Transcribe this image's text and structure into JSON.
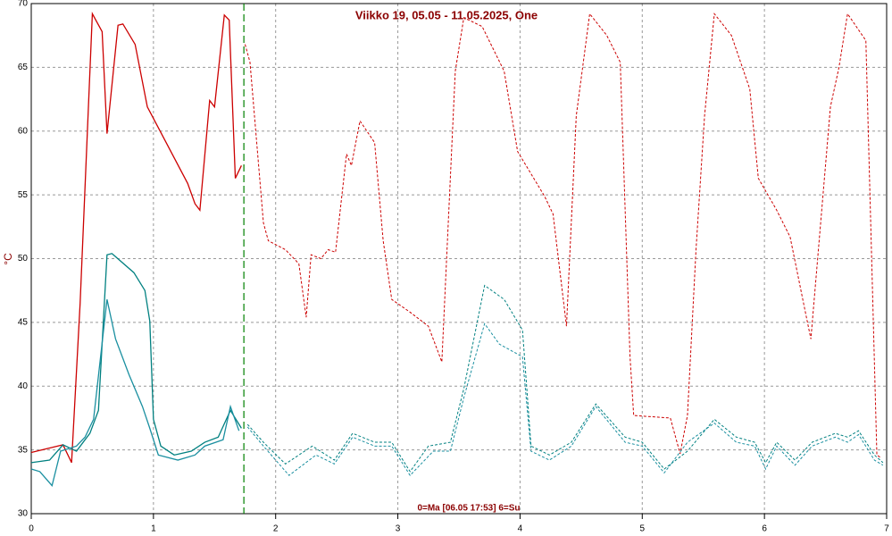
{
  "chart_data": {
    "type": "line",
    "title": "Viikko 19, 05.05 - 11.05.2025, One",
    "y_label": "°C",
    "annotation": "0=Ma [06.05 17:53] 6=Su",
    "xlim": [
      0,
      7
    ],
    "xticks": [
      0,
      1,
      2,
      3,
      4,
      5,
      6,
      7
    ],
    "ylim": [
      30,
      70
    ],
    "yticks": [
      30,
      35,
      40,
      45,
      50,
      55,
      60,
      65,
      70
    ],
    "grid": true,
    "marker_x": 1.74,
    "marker_color": "#008000",
    "series": [
      {
        "color": "#cc0000",
        "x": [
          0,
          0.26,
          0.33,
          0.4,
          0.5,
          0.58,
          0.62,
          0.71,
          0.75,
          0.85,
          0.95,
          1.28,
          1.34,
          1.38,
          1.46,
          1.5,
          1.58,
          1.62,
          1.67,
          1.72,
          1.75,
          1.79,
          1.9,
          1.94,
          2.08,
          2.19,
          2.25,
          2.29,
          2.37,
          2.43,
          2.49,
          2.58,
          2.62,
          2.69,
          2.81,
          2.88,
          2.95,
          3.1,
          3.25,
          3.36,
          3.47,
          3.54,
          3.69,
          3.87,
          3.98,
          4.2,
          4.27,
          4.38,
          4.46,
          4.57,
          4.71,
          4.82,
          4.9,
          4.93,
          5.23,
          5.31,
          5.37,
          5.44,
          5.51,
          5.59,
          5.73,
          5.88,
          5.95,
          6.1,
          6.21,
          6.32,
          6.38,
          6.54,
          6.61,
          6.68,
          6.83,
          6.92,
          6.95
        ],
        "values": [
          34.8,
          35.4,
          34.0,
          46.5,
          69.2,
          67.8,
          59.8,
          68.3,
          68.4,
          66.8,
          61.9,
          55.9,
          54.3,
          53.8,
          62.4,
          61.9,
          69.1,
          68.7,
          56.3,
          57.3,
          66.8,
          65.4,
          52.8,
          51.4,
          50.7,
          49.6,
          45.4,
          50.3,
          50.0,
          50.7,
          50.5,
          58.2,
          57.3,
          60.8,
          59.1,
          51.4,
          46.8,
          45.8,
          44.7,
          41.9,
          64.7,
          68.9,
          68.2,
          64.7,
          58.4,
          54.9,
          53.5,
          44.7,
          61.2,
          69.2,
          67.5,
          65.4,
          42.3,
          37.7,
          37.5,
          34.7,
          37.7,
          50.7,
          61.2,
          69.2,
          67.5,
          63.3,
          56.3,
          53.8,
          51.7,
          46.5,
          43.7,
          61.9,
          65.0,
          69.2,
          67.1,
          34.6,
          34.4
        ]
      },
      {
        "color": "#008080",
        "x": [
          0,
          0.15,
          0.26,
          0.37,
          0.48,
          0.55,
          0.62,
          0.66,
          0.84,
          0.93,
          0.97,
          1.0,
          1.06,
          1.17,
          1.31,
          1.42,
          1.53,
          1.63,
          1.72,
          1.77,
          1.9,
          2.08,
          2.3,
          2.48,
          2.63,
          2.81,
          2.95,
          3.1,
          3.25,
          3.43,
          3.54,
          3.71,
          3.87,
          4.02,
          4.09,
          4.24,
          4.42,
          4.62,
          4.86,
          5.0,
          5.18,
          5.37,
          5.59,
          5.77,
          5.92,
          6.01,
          6.1,
          6.25,
          6.39,
          6.58,
          6.68,
          6.77,
          6.9,
          6.97
        ],
        "values": [
          34.0,
          34.2,
          35.4,
          34.9,
          36.3,
          38.1,
          50.3,
          50.4,
          48.9,
          47.5,
          45.1,
          37.4,
          35.3,
          34.6,
          34.9,
          35.6,
          36.0,
          38.1,
          36.7,
          37.0,
          35.6,
          33.9,
          35.3,
          34.2,
          36.3,
          35.6,
          35.6,
          33.3,
          35.3,
          35.6,
          39.8,
          47.9,
          46.8,
          44.4,
          35.3,
          34.6,
          35.6,
          38.6,
          36.0,
          35.6,
          33.5,
          34.9,
          37.4,
          36.0,
          35.6,
          34.0,
          35.6,
          34.2,
          35.6,
          36.3,
          36.0,
          36.5,
          34.6,
          34.0
        ]
      },
      {
        "color": "#1a8fa0",
        "x": [
          0,
          0.07,
          0.17,
          0.24,
          0.37,
          0.44,
          0.51,
          0.62,
          0.69,
          0.8,
          0.91,
          0.97,
          1.04,
          1.2,
          1.34,
          1.42,
          1.57,
          1.63,
          1.7,
          1.77,
          1.9,
          2.11,
          2.33,
          2.48,
          2.63,
          2.81,
          2.95,
          3.1,
          3.29,
          3.43,
          3.54,
          3.71,
          3.83,
          4.02,
          4.09,
          4.24,
          4.42,
          4.62,
          4.86,
          5.0,
          5.18,
          5.37,
          5.59,
          5.77,
          5.92,
          6.01,
          6.1,
          6.25,
          6.39,
          6.58,
          6.68,
          6.77,
          6.9,
          6.97
        ],
        "values": [
          33.5,
          33.3,
          32.2,
          34.9,
          35.3,
          36.0,
          37.4,
          46.8,
          43.7,
          40.9,
          38.4,
          36.7,
          34.6,
          34.2,
          34.6,
          35.3,
          35.8,
          38.4,
          36.5,
          36.8,
          35.3,
          33.0,
          34.6,
          33.9,
          36.0,
          35.3,
          35.3,
          33.0,
          34.9,
          34.9,
          39.1,
          44.9,
          43.3,
          42.3,
          34.9,
          34.2,
          35.3,
          38.4,
          35.6,
          35.3,
          33.2,
          35.6,
          37.1,
          35.6,
          35.3,
          33.5,
          35.3,
          33.8,
          35.3,
          36.0,
          35.6,
          36.2,
          34.2,
          33.8
        ]
      }
    ]
  }
}
